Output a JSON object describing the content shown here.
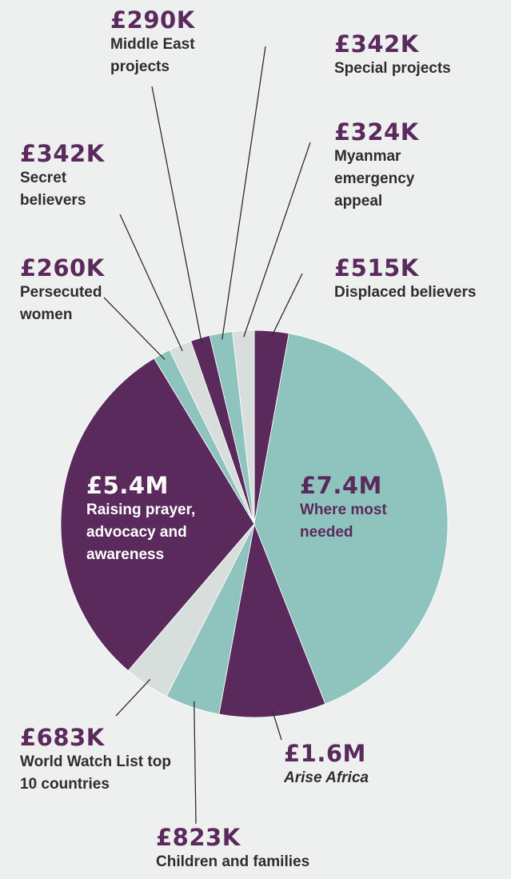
{
  "chart_data": {
    "type": "pie",
    "categories": [
      "Displaced believers",
      "Where most needed",
      "Arise Africa",
      "Children and families",
      "World Watch List top 10 countries",
      "Raising prayer, advocacy and awareness",
      "Persecuted women",
      "Secret believers",
      "Middle East projects",
      "Special projects",
      "Myanmar emergency appeal"
    ],
    "values": [
      515000,
      7400000,
      1600000,
      823000,
      683000,
      5400000,
      260000,
      342000,
      290000,
      342000,
      324000
    ],
    "value_labels": [
      "£515K",
      "£7.4M",
      "£1.6M",
      "£823K",
      "£683K",
      "£5.4M",
      "£260K",
      "£342K",
      "£290K",
      "£342K",
      "£324K"
    ],
    "colors": [
      "#5b2a5d",
      "#8fc4be",
      "#5b2a5d",
      "#8fc4be",
      "#d8dedc",
      "#5b2a5d",
      "#8fc4be",
      "#d8dedc",
      "#5b2a5d",
      "#8fc4be",
      "#d8dedc"
    ]
  }
}
